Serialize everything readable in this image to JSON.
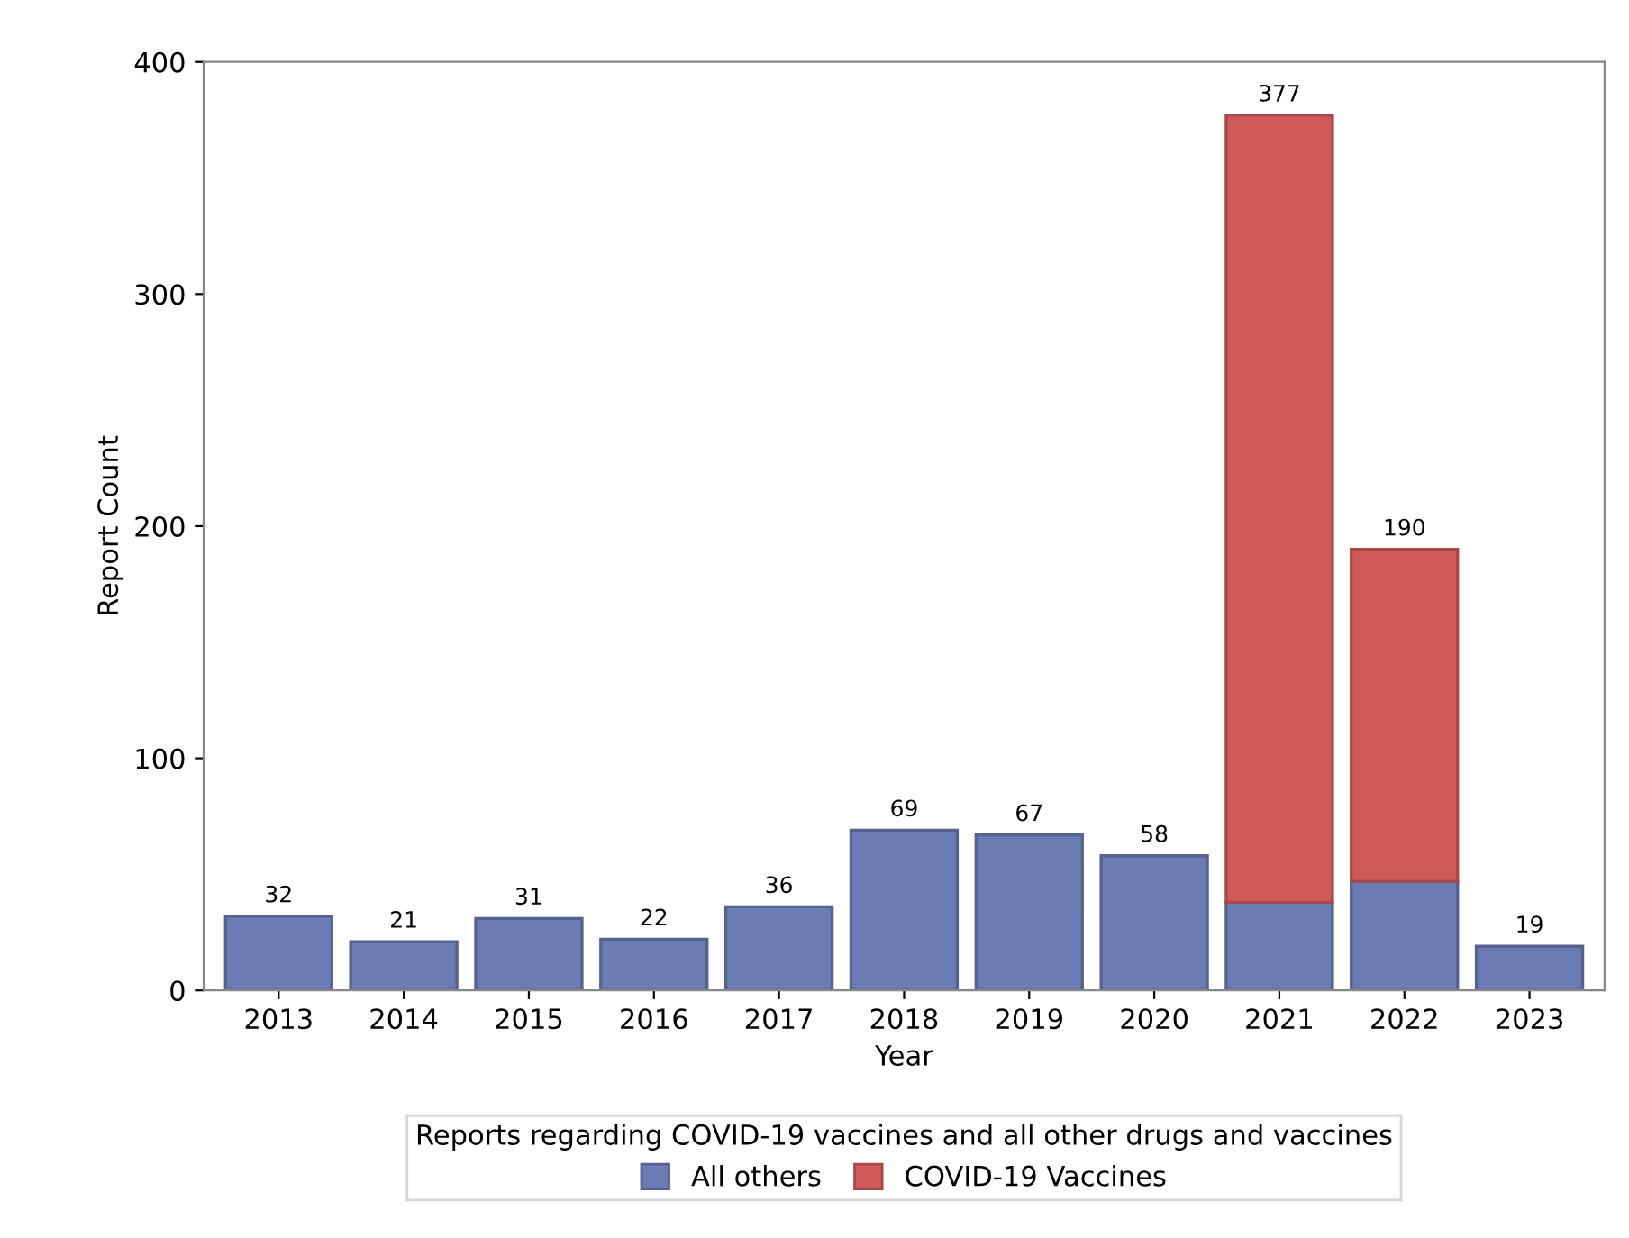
{
  "chart_data": {
    "type": "bar",
    "stacked": true,
    "xlabel": "Year",
    "ylabel": "Report Count",
    "categories": [
      "2013",
      "2014",
      "2015",
      "2016",
      "2017",
      "2018",
      "2019",
      "2020",
      "2021",
      "2022",
      "2023"
    ],
    "series": [
      {
        "name": "All others",
        "color": "#6b7bb4",
        "values": [
          32,
          21,
          31,
          22,
          36,
          69,
          67,
          58,
          38,
          47,
          19
        ]
      },
      {
        "name": "COVID-19 Vaccines",
        "color": "#d05a5a",
        "values": [
          null,
          null,
          null,
          null,
          null,
          null,
          null,
          null,
          339,
          143,
          null
        ]
      }
    ],
    "totals": [
      "32",
      "21",
      "31",
      "22",
      "36",
      "69",
      "67",
      "58",
      "377",
      "190",
      "19"
    ],
    "ylim": [
      0,
      400
    ],
    "yticks": [
      0,
      100,
      200,
      300,
      400
    ],
    "grid": false,
    "legend": "bottom",
    "legend_title": "Reports regarding COVID-19 vaccines and all other drugs and vaccines"
  }
}
